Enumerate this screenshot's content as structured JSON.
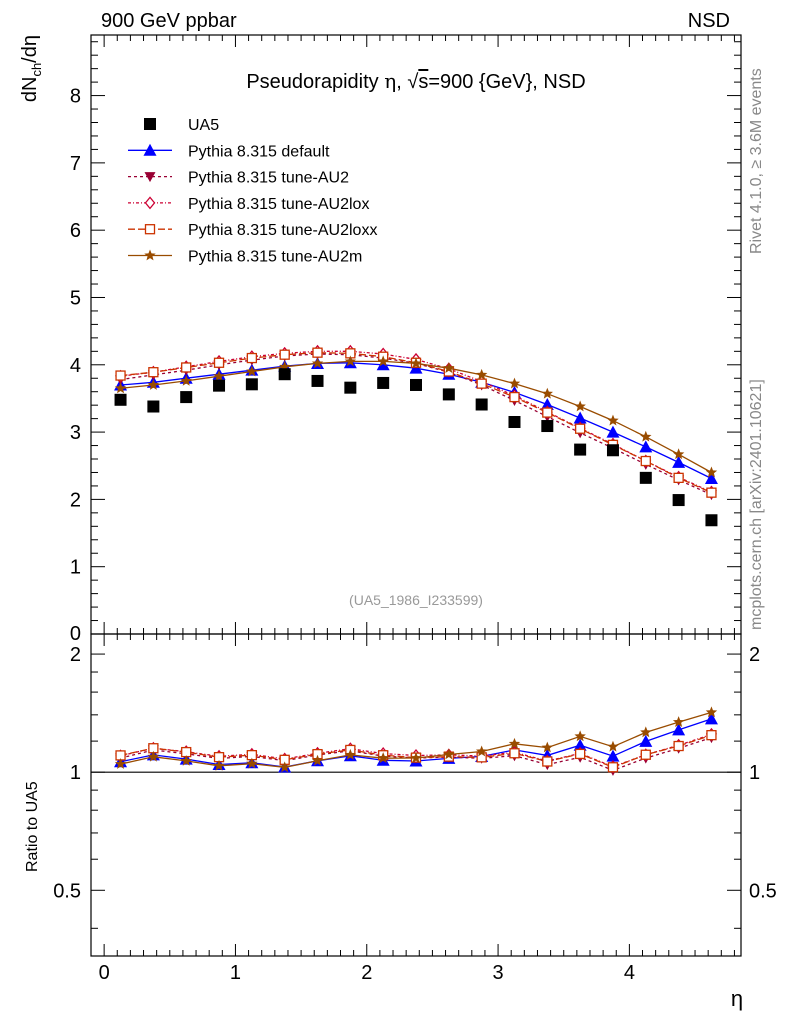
{
  "header": {
    "left": "900 GeV ppbar",
    "right": "NSD"
  },
  "side_labels": {
    "rivet": "Rivet 4.1.0, ≥ 3.6M events",
    "mcplots": "mcplots.cern.ch [arXiv:2401.10621]"
  },
  "chart_data": {
    "type": "scatter",
    "title": "Pseudorapidity η, √s=900 {GeV}, NSD",
    "title_parts": {
      "pre": "Pseudorapidity ",
      "eta": "η",
      "sep": ", ",
      "sqrt": "√",
      "s": "s",
      "post": "=900 {GeV}, NSD"
    },
    "xlabel": "η",
    "ylabel_main": "dN_ch/dη",
    "ylabel_parts": {
      "a": "dN",
      "sub": "ch",
      "b": "/dη"
    },
    "ylabel_ratio": "Ratio to UA5",
    "watermark": "(UA5_1986_I233599)",
    "xlim": [
      -0.1,
      4.85
    ],
    "ylim_main": [
      0,
      8.9
    ],
    "ylim_ratio": [
      0.34,
      2.25
    ],
    "x_ticks": [
      "0",
      "1",
      "2",
      "3",
      "4"
    ],
    "y_ticks_main": [
      "1",
      "2",
      "3",
      "4",
      "5",
      "6",
      "7",
      "8"
    ],
    "y_tick_main_zero": "0",
    "y_ticks_ratio": [
      "0.5",
      "1",
      "2"
    ],
    "x": [
      0.125,
      0.375,
      0.625,
      0.875,
      1.125,
      1.375,
      1.625,
      1.875,
      2.125,
      2.375,
      2.625,
      2.875,
      3.125,
      3.375,
      3.625,
      3.875,
      4.125,
      4.375,
      4.625
    ],
    "data": {
      "name": "UA5",
      "values": [
        3.48,
        3.38,
        3.52,
        3.69,
        3.71,
        3.86,
        3.76,
        3.66,
        3.73,
        3.7,
        3.56,
        3.41,
        3.15,
        3.09,
        2.74,
        2.73,
        2.32,
        1.99,
        1.69
      ]
    },
    "series": [
      {
        "name": "Pythia 8.315 default",
        "color": "#0000ff",
        "marker": "triangle-up",
        "dash": "",
        "values": [
          3.7,
          3.74,
          3.8,
          3.86,
          3.92,
          3.98,
          4.02,
          4.03,
          4.0,
          3.95,
          3.86,
          3.74,
          3.59,
          3.41,
          3.21,
          3.0,
          2.78,
          2.55,
          2.31
        ]
      },
      {
        "name": "Pythia 8.315 tune-AU2",
        "color": "#990033",
        "marker": "triangle-down",
        "dash": "3,3",
        "values": [
          3.78,
          3.85,
          3.92,
          4.0,
          4.07,
          4.13,
          4.16,
          4.15,
          4.1,
          4.02,
          3.89,
          3.7,
          3.47,
          3.23,
          2.99,
          2.76,
          2.52,
          2.29,
          2.07
        ]
      },
      {
        "name": "Pythia 8.315 tune-AU2lox",
        "color": "#cc0033",
        "marker": "diamond-open",
        "dash": "3,2,1,2",
        "values": [
          3.83,
          3.89,
          3.97,
          4.05,
          4.12,
          4.17,
          4.2,
          4.2,
          4.16,
          4.08,
          3.94,
          3.75,
          3.54,
          3.3,
          3.06,
          2.82,
          2.57,
          2.33,
          2.11
        ]
      },
      {
        "name": "Pythia 8.315 tune-AU2loxx",
        "color": "#cc3300",
        "marker": "square-open",
        "dash": "7,3",
        "values": [
          3.84,
          3.89,
          3.96,
          4.03,
          4.1,
          4.15,
          4.18,
          4.17,
          4.12,
          4.03,
          3.9,
          3.72,
          3.52,
          3.29,
          3.05,
          2.81,
          2.57,
          2.32,
          2.1
        ]
      },
      {
        "name": "Pythia 8.315 tune-AU2m",
        "color": "#994c00",
        "marker": "star",
        "dash": "",
        "values": [
          3.65,
          3.7,
          3.76,
          3.83,
          3.9,
          3.97,
          4.02,
          4.05,
          4.05,
          4.02,
          3.95,
          3.85,
          3.72,
          3.57,
          3.38,
          3.17,
          2.93,
          2.67,
          2.4
        ]
      }
    ],
    "legend_position": "top-left",
    "ratio_reference_line": 1
  }
}
